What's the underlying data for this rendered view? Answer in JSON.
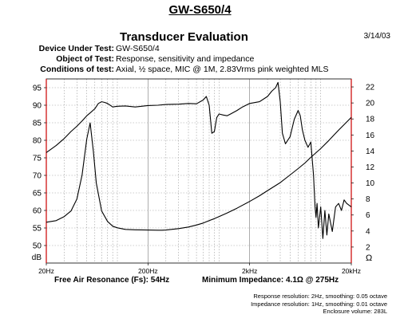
{
  "header": {
    "doc_title": "GW-S650/4",
    "title": "Transducer Evaluation",
    "date": "3/14/03",
    "info": [
      {
        "key": "Device Under Test:",
        "value": "GW-S650/4"
      },
      {
        "key": "Object of Test:",
        "value": "Response, sensitivity and impedance"
      },
      {
        "key": "Conditions of test:",
        "value": "Axial, ½ space, MIC @ 1M, 2.83Vrms pink weighted MLS"
      }
    ]
  },
  "chart_data": {
    "type": "line",
    "x_scale": "log",
    "xlim": [
      20,
      20000
    ],
    "x_tick_labels": [
      {
        "x": 20,
        "label": "20Hz"
      },
      {
        "x": 200,
        "label": "200Hz"
      },
      {
        "x": 2000,
        "label": "2kHz"
      },
      {
        "x": 20000,
        "label": "20kHz"
      }
    ],
    "y_left": {
      "unit": "dB",
      "lim": [
        45,
        97.5
      ],
      "ticks": [
        50,
        55,
        60,
        65,
        70,
        75,
        80,
        85,
        90,
        95
      ]
    },
    "y_right": {
      "unit": "Ω",
      "lim": [
        0,
        23
      ],
      "ticks": [
        2,
        4,
        6,
        8,
        10,
        12,
        14,
        16,
        18,
        20,
        22
      ]
    },
    "grid": true,
    "markers": [
      20,
      20000
    ],
    "marker_color": "#cc0000",
    "series": [
      {
        "axis": "left",
        "x": [
          20,
          25,
          30,
          35,
          40,
          45,
          50,
          55,
          60,
          65,
          70,
          75,
          80,
          90,
          100,
          120,
          150,
          200,
          250,
          300,
          400,
          500,
          600,
          700,
          750,
          800,
          850,
          900,
          950,
          1000,
          1100,
          1200,
          1300,
          1500,
          1700,
          2000,
          2500,
          3000,
          3300,
          3600,
          3800,
          4000,
          4200,
          4500,
          5000,
          5500,
          6000,
          6300,
          6600,
          7000,
          7500,
          8000,
          8500,
          8800,
          9000,
          9200,
          9500,
          10000,
          10500,
          11000,
          11500,
          12000,
          13000,
          14000,
          15000,
          16000,
          17000,
          18000,
          19000,
          20000
        ],
        "values": [
          76.5,
          78.5,
          80.5,
          82.5,
          84,
          85.5,
          87,
          88,
          89,
          90.5,
          91,
          90.8,
          90.5,
          89.5,
          89.7,
          89.8,
          89.5,
          89.9,
          90,
          90.2,
          90.3,
          90.5,
          90.4,
          91.5,
          92.5,
          90,
          82,
          82.5,
          86.5,
          87.5,
          87.2,
          87,
          87.5,
          88.5,
          89.5,
          90.5,
          91,
          92.5,
          94,
          95,
          96.5,
          91,
          82,
          79,
          81,
          86,
          88.5,
          87,
          83,
          80,
          78,
          79.5,
          70,
          61,
          58,
          62,
          55,
          61,
          52,
          60,
          53,
          59,
          54,
          61,
          62,
          60,
          63,
          62,
          61.5,
          61
        ]
      },
      {
        "axis": "right",
        "x": [
          20,
          25,
          30,
          35,
          40,
          45,
          50,
          54,
          58,
          62,
          70,
          80,
          90,
          100,
          120,
          150,
          200,
          250,
          275,
          300,
          400,
          500,
          600,
          700,
          800,
          900,
          1000,
          1200,
          1500,
          2000,
          2500,
          3000,
          4000,
          5000,
          6000,
          7000,
          8000,
          10000,
          12000,
          15000,
          20000
        ],
        "values": [
          5.1,
          5.3,
          5.8,
          6.5,
          8,
          11,
          15.5,
          17.5,
          14,
          10,
          6.5,
          5.2,
          4.6,
          4.4,
          4.2,
          4.15,
          4.12,
          4.1,
          4.1,
          4.12,
          4.3,
          4.5,
          4.75,
          5,
          5.3,
          5.55,
          5.8,
          6.25,
          6.85,
          7.7,
          8.4,
          9.05,
          10.05,
          11,
          11.8,
          12.5,
          13.2,
          14.3,
          15.3,
          16.6,
          18.2
        ]
      }
    ]
  },
  "footer": {
    "fs": "Free Air Resonance (Fs): 54Hz",
    "zmin": "Minimum Impedance: 4.1Ω @ 275Hz",
    "notes": [
      "Response resolution: 2Hz, smoothing: 0.05 octave",
      "Impedance resolution: 1Hz, smoothing: 0.01 octave",
      "Enclosure volume: 283L"
    ]
  }
}
